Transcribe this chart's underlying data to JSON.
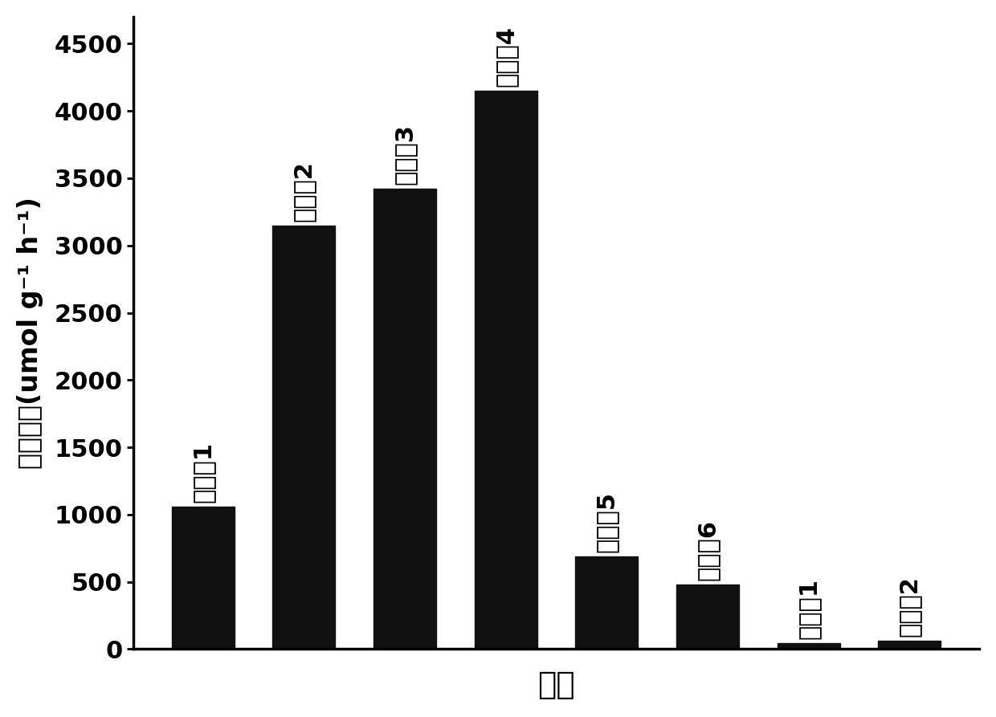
{
  "categories": [
    "实施奣1",
    "实施奣2",
    "实施奣3",
    "实施奣4",
    "实施奣5",
    "实施奣6",
    "对比奣1",
    "对比奣2"
  ],
  "values": [
    1060,
    3150,
    3420,
    4150,
    690,
    480,
    45,
    60
  ],
  "bar_color": "#111111",
  "ylabel": "产氢速率(umol g⁻¹ h⁻¹)",
  "xlabel": "分组",
  "ylim": [
    0,
    4700
  ],
  "yticks": [
    0,
    500,
    1000,
    1500,
    2000,
    2500,
    3000,
    3500,
    4000,
    4500
  ],
  "background_color": "#ffffff",
  "label_fontsize": 22,
  "tick_fontsize": 22,
  "ylabel_fontsize": 24,
  "xlabel_fontsize": 28
}
